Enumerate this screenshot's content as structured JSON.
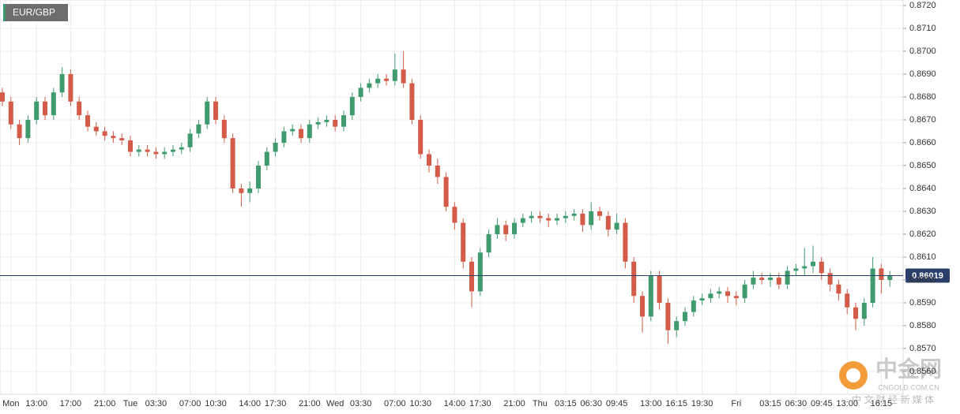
{
  "chart_data": {
    "type": "candlestick",
    "title": "EUR/GBP",
    "up_color": "#3f9a6e",
    "down_color": "#d35b48",
    "grid": true,
    "ylim": [
      0.855,
      0.87224
    ],
    "yticks": [
      {
        "value": 0.856,
        "label": "0.8560"
      },
      {
        "value": 0.857,
        "label": "0.8570"
      },
      {
        "value": 0.858,
        "label": "0.8580"
      },
      {
        "value": 0.859,
        "label": "0.8590"
      },
      {
        "value": 0.86,
        "label": "0.8600"
      },
      {
        "value": 0.861,
        "label": "0.8610"
      },
      {
        "value": 0.862,
        "label": "0.8620"
      },
      {
        "value": 0.863,
        "label": "0.8630"
      },
      {
        "value": 0.864,
        "label": "0.8640"
      },
      {
        "value": 0.865,
        "label": "0.8650"
      },
      {
        "value": 0.866,
        "label": "0.8660"
      },
      {
        "value": 0.867,
        "label": "0.8670"
      },
      {
        "value": 0.868,
        "label": "0.8680"
      },
      {
        "value": 0.869,
        "label": "0.8690"
      },
      {
        "value": 0.87,
        "label": "0.8700"
      },
      {
        "value": 0.871,
        "label": "0.8710"
      },
      {
        "value": 0.872,
        "label": "0.8720"
      }
    ],
    "last_price": 0.86019,
    "last_price_color": "#2b3f6b",
    "categories": [
      null,
      "Mon",
      null,
      null,
      "13:00",
      null,
      null,
      null,
      "17:00",
      null,
      null,
      null,
      "21:00",
      null,
      null,
      "Tue",
      null,
      null,
      "03:30",
      null,
      null,
      null,
      "07:00",
      null,
      null,
      "10:30",
      null,
      null,
      null,
      "14:00",
      null,
      null,
      "17:30",
      null,
      null,
      null,
      "21:00",
      null,
      null,
      "Wed",
      null,
      null,
      "03:30",
      null,
      null,
      null,
      "07:00",
      null,
      null,
      "10:30",
      null,
      null,
      null,
      "14:00",
      null,
      null,
      "17:30",
      null,
      null,
      null,
      "21:00",
      null,
      null,
      "Thu",
      null,
      null,
      "03:15",
      null,
      null,
      "06:30",
      null,
      null,
      "09:45",
      null,
      null,
      null,
      "13:00",
      null,
      null,
      "16:15",
      null,
      null,
      "19:30",
      null,
      null,
      null,
      "Fri",
      null,
      null,
      null,
      "03:15",
      null,
      null,
      "06:30",
      null,
      null,
      "09:45",
      null,
      null,
      "13:00",
      null,
      null,
      null,
      "16:15",
      null
    ],
    "open": [
      0.8682,
      0.8678,
      0.8668,
      0.8662,
      0.867,
      0.8678,
      0.8672,
      0.8682,
      0.869,
      0.8678,
      0.8672,
      0.8667,
      0.8665,
      0.8663,
      0.8662,
      0.8661,
      0.8656,
      0.8657,
      0.8656,
      0.8655,
      0.8656,
      0.8657,
      0.8658,
      0.8664,
      0.8668,
      0.8678,
      0.867,
      0.8662,
      0.864,
      0.8638,
      0.864,
      0.865,
      0.8656,
      0.866,
      0.8665,
      0.8666,
      0.8662,
      0.8668,
      0.8669,
      0.867,
      0.8667,
      0.8672,
      0.868,
      0.8684,
      0.8686,
      0.8688,
      0.8687,
      0.8692,
      0.8686,
      0.867,
      0.8655,
      0.865,
      0.8645,
      0.8632,
      0.8625,
      0.8608,
      0.8595,
      0.8612,
      0.862,
      0.8624,
      0.862,
      0.8625,
      0.8627,
      0.8628,
      0.8627,
      0.8626,
      0.8627,
      0.8628,
      0.8629,
      0.8624,
      0.863,
      0.8628,
      0.8622,
      0.8625,
      0.8608,
      0.8593,
      0.8584,
      0.8602,
      0.859,
      0.8578,
      0.8582,
      0.8586,
      0.8591,
      0.8592,
      0.8594,
      0.8595,
      0.8593,
      0.8592,
      0.8598,
      0.8601,
      0.86,
      0.8601,
      0.8598,
      0.8604,
      0.8605,
      0.8606,
      0.8608,
      0.8603,
      0.8598,
      0.8594,
      0.8588,
      0.8583,
      0.859,
      0.8605,
      0.86
    ],
    "high": [
      0.8684,
      0.868,
      0.867,
      0.8672,
      0.868,
      0.868,
      0.8684,
      0.8693,
      0.8692,
      0.868,
      0.8674,
      0.8669,
      0.8667,
      0.8665,
      0.8664,
      0.8663,
      0.8659,
      0.8659,
      0.8658,
      0.8658,
      0.8659,
      0.866,
      0.8666,
      0.867,
      0.868,
      0.868,
      0.8672,
      0.8664,
      0.8642,
      0.8643,
      0.8652,
      0.8658,
      0.8662,
      0.8667,
      0.8668,
      0.8668,
      0.867,
      0.8671,
      0.8672,
      0.8672,
      0.8674,
      0.8682,
      0.8686,
      0.8688,
      0.869,
      0.869,
      0.8699,
      0.87,
      0.8688,
      0.8672,
      0.8657,
      0.8653,
      0.8647,
      0.8634,
      0.8627,
      0.861,
      0.8614,
      0.8622,
      0.8627,
      0.8626,
      0.8627,
      0.8629,
      0.863,
      0.863,
      0.8629,
      0.8629,
      0.863,
      0.8631,
      0.8631,
      0.8634,
      0.8632,
      0.863,
      0.8629,
      0.8627,
      0.861,
      0.8595,
      0.8604,
      0.8604,
      0.8592,
      0.8584,
      0.8588,
      0.8593,
      0.8594,
      0.8596,
      0.8597,
      0.8597,
      0.8595,
      0.86,
      0.8604,
      0.8603,
      0.8603,
      0.8603,
      0.8606,
      0.8607,
      0.8614,
      0.8615,
      0.861,
      0.8605,
      0.86,
      0.8596,
      0.859,
      0.8592,
      0.861,
      0.8607,
      0.8604
    ],
    "low": [
      0.8676,
      0.8666,
      0.8659,
      0.866,
      0.8668,
      0.867,
      0.867,
      0.868,
      0.8676,
      0.867,
      0.8665,
      0.8663,
      0.8661,
      0.866,
      0.8659,
      0.8654,
      0.8654,
      0.8654,
      0.8653,
      0.8653,
      0.8654,
      0.8655,
      0.8656,
      0.8662,
      0.8666,
      0.8668,
      0.866,
      0.8638,
      0.8632,
      0.8634,
      0.8638,
      0.8648,
      0.8654,
      0.8658,
      0.8663,
      0.866,
      0.866,
      0.8666,
      0.8667,
      0.8665,
      0.8665,
      0.867,
      0.8678,
      0.8682,
      0.8684,
      0.8685,
      0.8685,
      0.8684,
      0.8668,
      0.8653,
      0.8647,
      0.8642,
      0.863,
      0.8622,
      0.8605,
      0.8588,
      0.8593,
      0.861,
      0.8618,
      0.8617,
      0.8618,
      0.8623,
      0.8625,
      0.8625,
      0.8623,
      0.8624,
      0.8625,
      0.8626,
      0.8621,
      0.8622,
      0.8626,
      0.8619,
      0.862,
      0.8605,
      0.859,
      0.8577,
      0.8582,
      0.8587,
      0.8572,
      0.8575,
      0.858,
      0.8584,
      0.8589,
      0.859,
      0.8592,
      0.859,
      0.8589,
      0.859,
      0.8596,
      0.8598,
      0.8597,
      0.8596,
      0.8596,
      0.8602,
      0.8602,
      0.8603,
      0.86,
      0.8595,
      0.8591,
      0.8585,
      0.8578,
      0.858,
      0.8588,
      0.8594,
      0.8597
    ],
    "close": [
      0.8678,
      0.8668,
      0.8662,
      0.867,
      0.8678,
      0.8672,
      0.8682,
      0.869,
      0.8678,
      0.8672,
      0.8667,
      0.8665,
      0.8663,
      0.8662,
      0.8661,
      0.8656,
      0.8657,
      0.8656,
      0.8655,
      0.8656,
      0.8657,
      0.8658,
      0.8664,
      0.8668,
      0.8678,
      0.867,
      0.8662,
      0.864,
      0.8638,
      0.864,
      0.865,
      0.8656,
      0.866,
      0.8665,
      0.8666,
      0.8662,
      0.8668,
      0.8669,
      0.867,
      0.8667,
      0.8672,
      0.868,
      0.8684,
      0.8686,
      0.8688,
      0.8687,
      0.8692,
      0.8686,
      0.867,
      0.8655,
      0.865,
      0.8645,
      0.8632,
      0.8625,
      0.8608,
      0.8595,
      0.8612,
      0.862,
      0.8624,
      0.862,
      0.8625,
      0.8627,
      0.8628,
      0.8627,
      0.8626,
      0.8627,
      0.8628,
      0.8629,
      0.8624,
      0.863,
      0.8628,
      0.8622,
      0.8625,
      0.8608,
      0.8593,
      0.8584,
      0.8602,
      0.859,
      0.8578,
      0.8582,
      0.8586,
      0.8591,
      0.8592,
      0.8594,
      0.8595,
      0.8593,
      0.8592,
      0.8598,
      0.8601,
      0.86,
      0.8601,
      0.8598,
      0.8604,
      0.8605,
      0.8606,
      0.8608,
      0.8603,
      0.8598,
      0.8594,
      0.8588,
      0.8583,
      0.859,
      0.8605,
      0.86,
      0.8602
    ],
    "watermark": {
      "name": "中金网",
      "site": "CNGOLD.COM.CN",
      "tagline": "中 文 财 经 新 媒 体"
    }
  }
}
